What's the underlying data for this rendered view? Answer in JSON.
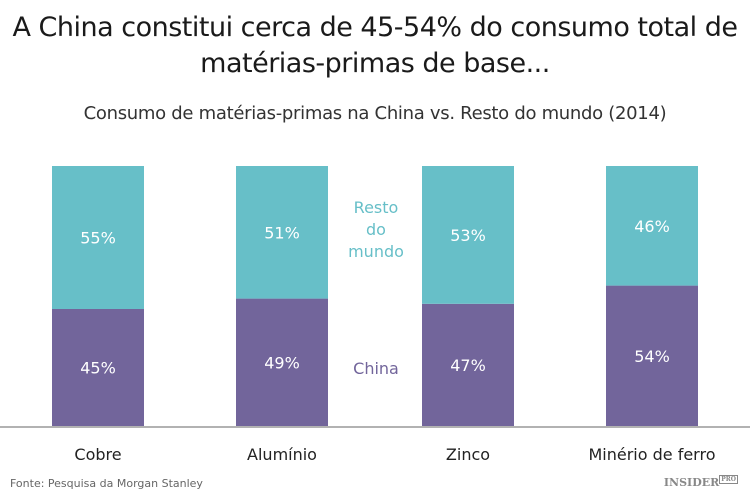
{
  "chart_data": {
    "type": "bar",
    "stacked": true,
    "title": "A China constitui cerca de 45-54% do consumo total de matérias-primas de base...",
    "subtitle": "Consumo de matérias-primas na China vs. Resto do mundo (2014)",
    "categories": [
      "Cobre",
      "Alumínio",
      "Zinco",
      "Minério de ferro"
    ],
    "series": [
      {
        "name": "China",
        "values": [
          45,
          49,
          47,
          54
        ],
        "labels": [
          "45%",
          "49%",
          "47%",
          "54%"
        ],
        "color": "#72659b"
      },
      {
        "name": "Resto do mundo",
        "values": [
          55,
          51,
          53,
          46
        ],
        "labels": [
          "55%",
          "51%",
          "53%",
          "46%"
        ],
        "color": "#67bfc8"
      }
    ],
    "legend_lines": [
      "Resto",
      "do",
      "mundo"
    ],
    "ylim": [
      0,
      100
    ],
    "grid": false,
    "legend": "between-bars"
  },
  "footer": {
    "source": "Fonte: Pesquisa da Morgan Stanley",
    "logo": "INSIDER",
    "logo_badge": "PRO"
  }
}
